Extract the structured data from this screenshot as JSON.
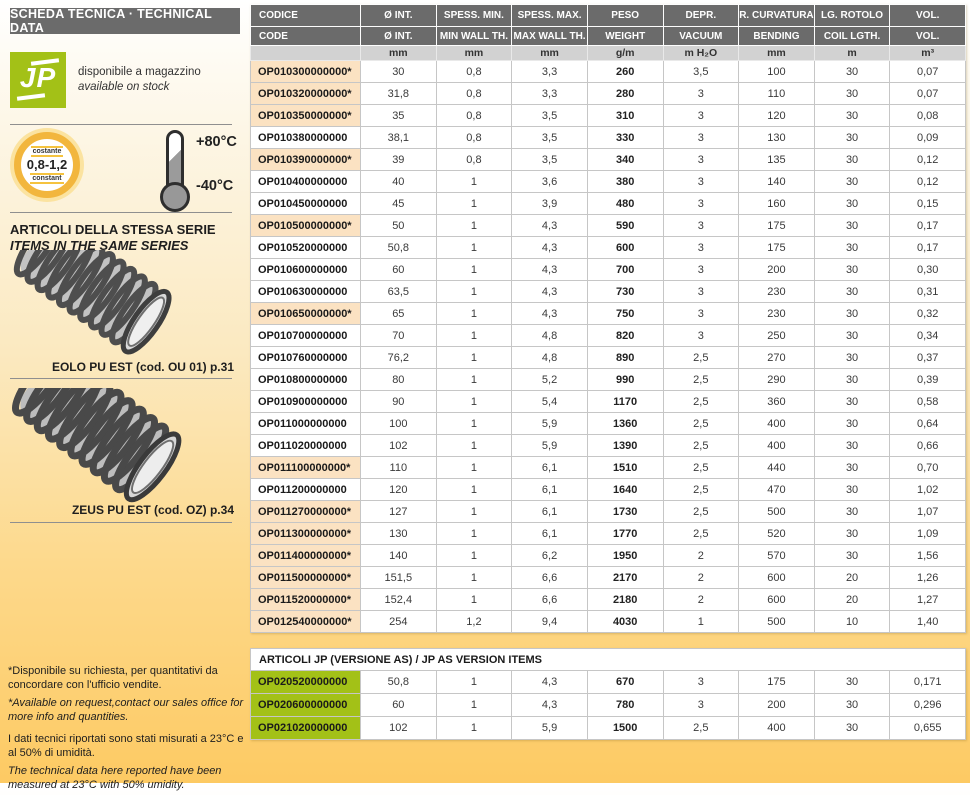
{
  "colors": {
    "brand_green": "#a3c117",
    "highlight_peach": "#fbe2c2",
    "header_gray": "#6b6b6b",
    "background_gold": "#fdca63"
  },
  "sidebar": {
    "header": "SCHEDA TECNICA · TECHNICAL DATA",
    "logo": {
      "text": "JP",
      "caption_it": "disponibile a magazzino",
      "caption_en": "available on stock"
    },
    "badge": {
      "top": "costante",
      "value": "0,8-1,2",
      "bottom": "constant"
    },
    "temperature": {
      "max": "+80°C",
      "min": "-40°C"
    },
    "series_title_it": "ARTICOLI DELLA STESSA SERIE",
    "series_title_en": "ITEMS IN THE SAME SERIES",
    "related": [
      {
        "label": "EOLO PU EST (cod. OU 01) p.31"
      },
      {
        "label": "ZEUS PU EST (cod. OZ) p.34"
      }
    ],
    "footnotes": {
      "note1_it": "*Disponibile su richiesta, per quantitativi da concordare con l'ufficio vendite.",
      "note1_en": "*Available on request,contact our sales office for more info and quantities.",
      "note2_it": "I dati tecnici riportati sono stati misurati a 23°C e al 50% di umidità.",
      "note2_en": "The technical data here reported have been measured at 23°C with 50% umidity."
    }
  },
  "table": {
    "headers_row1": [
      "CODICE",
      "Ø INT.",
      "SPESS. MIN.",
      "SPESS. MAX.",
      "PESO",
      "DEPR.",
      "R. CURVATURA",
      "LG. ROTOLO",
      "VOL."
    ],
    "headers_row2": [
      "CODE",
      "Ø INT.",
      "MIN WALL TH.",
      "MAX WALL TH.",
      "WEIGHT",
      "VACUUM",
      "BENDING",
      "COIL LGTH.",
      "VOL."
    ],
    "units": [
      "",
      "mm",
      "mm",
      "mm",
      "g/m",
      "m H₂O",
      "mm",
      "m",
      "m³"
    ],
    "rows": [
      {
        "code": "OP010300000000*",
        "starred": true,
        "values": [
          "30",
          "0,8",
          "3,3",
          "260",
          "3,5",
          "100",
          "30",
          "0,07"
        ]
      },
      {
        "code": "OP010320000000*",
        "starred": true,
        "values": [
          "31,8",
          "0,8",
          "3,3",
          "280",
          "3",
          "110",
          "30",
          "0,07"
        ]
      },
      {
        "code": "OP010350000000*",
        "starred": true,
        "values": [
          "35",
          "0,8",
          "3,5",
          "310",
          "3",
          "120",
          "30",
          "0,08"
        ]
      },
      {
        "code": "OP010380000000",
        "starred": false,
        "values": [
          "38,1",
          "0,8",
          "3,5",
          "330",
          "3",
          "130",
          "30",
          "0,09"
        ]
      },
      {
        "code": "OP010390000000*",
        "starred": true,
        "values": [
          "39",
          "0,8",
          "3,5",
          "340",
          "3",
          "135",
          "30",
          "0,12"
        ]
      },
      {
        "code": "OP010400000000",
        "starred": false,
        "values": [
          "40",
          "1",
          "3,6",
          "380",
          "3",
          "140",
          "30",
          "0,12"
        ]
      },
      {
        "code": "OP010450000000",
        "starred": false,
        "values": [
          "45",
          "1",
          "3,9",
          "480",
          "3",
          "160",
          "30",
          "0,15"
        ]
      },
      {
        "code": "OP010500000000*",
        "starred": true,
        "values": [
          "50",
          "1",
          "4,3",
          "590",
          "3",
          "175",
          "30",
          "0,17"
        ]
      },
      {
        "code": "OP010520000000",
        "starred": false,
        "values": [
          "50,8",
          "1",
          "4,3",
          "600",
          "3",
          "175",
          "30",
          "0,17"
        ]
      },
      {
        "code": "OP010600000000",
        "starred": false,
        "values": [
          "60",
          "1",
          "4,3",
          "700",
          "3",
          "200",
          "30",
          "0,30"
        ]
      },
      {
        "code": "OP010630000000",
        "starred": false,
        "values": [
          "63,5",
          "1",
          "4,3",
          "730",
          "3",
          "230",
          "30",
          "0,31"
        ]
      },
      {
        "code": "OP010650000000*",
        "starred": true,
        "values": [
          "65",
          "1",
          "4,3",
          "750",
          "3",
          "230",
          "30",
          "0,32"
        ]
      },
      {
        "code": "OP010700000000",
        "starred": false,
        "values": [
          "70",
          "1",
          "4,8",
          "820",
          "3",
          "250",
          "30",
          "0,34"
        ]
      },
      {
        "code": "OP010760000000",
        "starred": false,
        "values": [
          "76,2",
          "1",
          "4,8",
          "890",
          "2,5",
          "270",
          "30",
          "0,37"
        ]
      },
      {
        "code": "OP010800000000",
        "starred": false,
        "values": [
          "80",
          "1",
          "5,2",
          "990",
          "2,5",
          "290",
          "30",
          "0,39"
        ]
      },
      {
        "code": "OP010900000000",
        "starred": false,
        "values": [
          "90",
          "1",
          "5,4",
          "1170",
          "2,5",
          "360",
          "30",
          "0,58"
        ]
      },
      {
        "code": "OP011000000000",
        "starred": false,
        "values": [
          "100",
          "1",
          "5,9",
          "1360",
          "2,5",
          "400",
          "30",
          "0,64"
        ]
      },
      {
        "code": "OP011020000000",
        "starred": false,
        "values": [
          "102",
          "1",
          "5,9",
          "1390",
          "2,5",
          "400",
          "30",
          "0,66"
        ]
      },
      {
        "code": "OP011100000000*",
        "starred": true,
        "values": [
          "110",
          "1",
          "6,1",
          "1510",
          "2,5",
          "440",
          "30",
          "0,70"
        ]
      },
      {
        "code": "OP011200000000",
        "starred": false,
        "values": [
          "120",
          "1",
          "6,1",
          "1640",
          "2,5",
          "470",
          "30",
          "1,02"
        ]
      },
      {
        "code": "OP011270000000*",
        "starred": true,
        "values": [
          "127",
          "1",
          "6,1",
          "1730",
          "2,5",
          "500",
          "30",
          "1,07"
        ]
      },
      {
        "code": "OP011300000000*",
        "starred": true,
        "values": [
          "130",
          "1",
          "6,1",
          "1770",
          "2,5",
          "520",
          "30",
          "1,09"
        ]
      },
      {
        "code": "OP011400000000*",
        "starred": true,
        "values": [
          "140",
          "1",
          "6,2",
          "1950",
          "2",
          "570",
          "30",
          "1,56"
        ]
      },
      {
        "code": "OP011500000000*",
        "starred": true,
        "values": [
          "151,5",
          "1",
          "6,6",
          "2170",
          "2",
          "600",
          "20",
          "1,26"
        ]
      },
      {
        "code": "OP011520000000*",
        "starred": true,
        "values": [
          "152,4",
          "1",
          "6,6",
          "2180",
          "2",
          "600",
          "20",
          "1,27"
        ]
      },
      {
        "code": "OP012540000000*",
        "starred": true,
        "values": [
          "254",
          "1,2",
          "9,4",
          "4030",
          "1",
          "500",
          "10",
          "1,40"
        ]
      }
    ]
  },
  "as_table": {
    "title": "ARTICOLI JP (VERSIONE AS) / JP AS VERSION ITEMS",
    "rows": [
      {
        "code": "OP020520000000",
        "green": true,
        "values": [
          "50,8",
          "1",
          "4,3",
          "670",
          "3",
          "175",
          "30",
          "0,171"
        ]
      },
      {
        "code": "OP020600000000",
        "green": true,
        "values": [
          "60",
          "1",
          "4,3",
          "780",
          "3",
          "200",
          "30",
          "0,296"
        ]
      },
      {
        "code": "OP021020000000",
        "green": true,
        "values": [
          "102",
          "1",
          "5,9",
          "1500",
          "2,5",
          "400",
          "30",
          "0,655"
        ]
      }
    ]
  }
}
